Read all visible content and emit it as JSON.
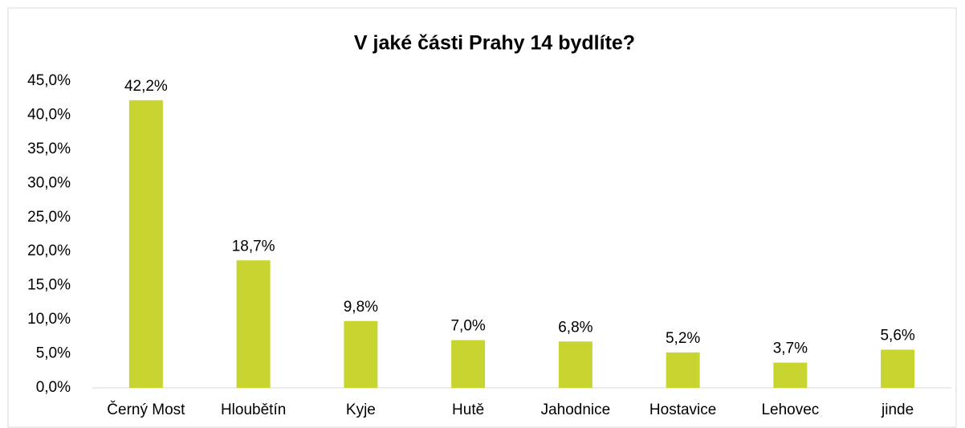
{
  "chart_data": {
    "type": "bar",
    "title": "V jaké části Prahy 14 bydlíte?",
    "categories": [
      "Černý Most",
      "Hloubětín",
      "Kyje",
      "Hutě",
      "Jahodnice",
      "Hostavice",
      "Lehovec",
      "jinde"
    ],
    "values": [
      42.2,
      18.7,
      9.8,
      7.0,
      6.8,
      5.2,
      3.7,
      5.6
    ],
    "value_labels": [
      "42,2%",
      "18,7%",
      "9,8%",
      "7,0%",
      "6,8%",
      "5,2%",
      "3,7%",
      "5,6%"
    ],
    "color": "#c8d42f",
    "ylim": [
      0,
      45
    ],
    "yticks": [
      {
        "value": 0,
        "label": "0,0%"
      },
      {
        "value": 5,
        "label": "5,0%"
      },
      {
        "value": 10,
        "label": "10,0%"
      },
      {
        "value": 15,
        "label": "15,0%"
      },
      {
        "value": 20,
        "label": "20,0%"
      },
      {
        "value": 25,
        "label": "25,0%"
      },
      {
        "value": 30,
        "label": "30,0%"
      },
      {
        "value": 35,
        "label": "35,0%"
      },
      {
        "value": 40,
        "label": "40,0%"
      },
      {
        "value": 45,
        "label": "45,0%"
      }
    ],
    "grid": false
  }
}
